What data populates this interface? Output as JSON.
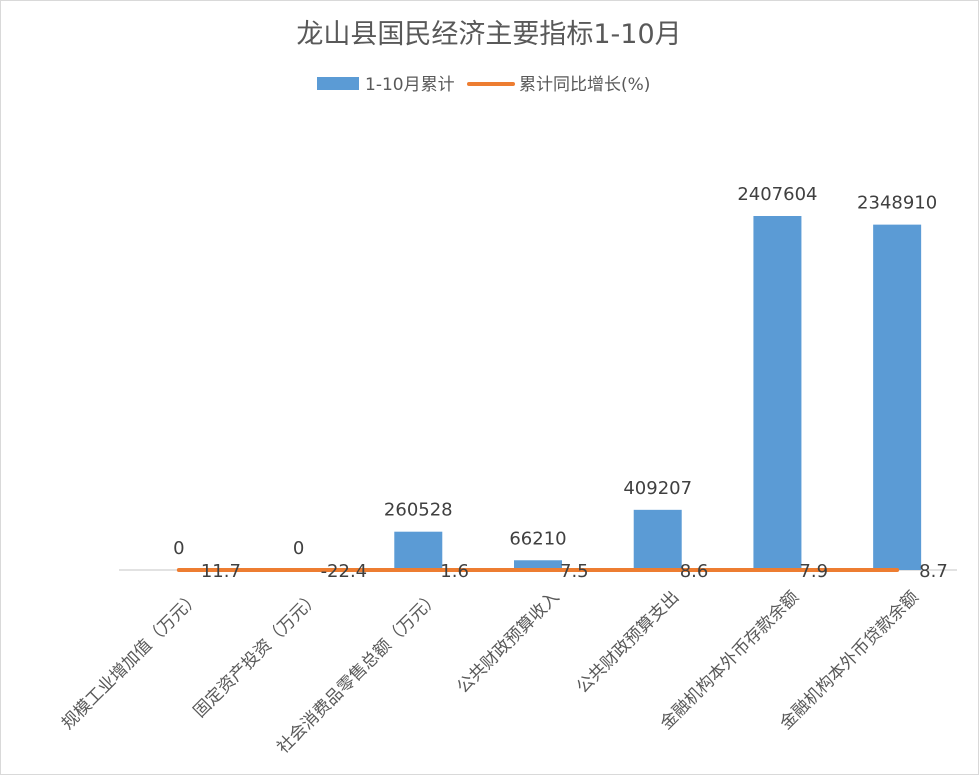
{
  "chart_data": {
    "type": "bar",
    "title": "龙山县国民经济主要指标1-10月",
    "categories": [
      "规模工业增加值（万元）",
      "固定资产投资（万元）",
      "社会消费品零售总额（万元）",
      "公共财政预算收入",
      "公共财政预算支出",
      "金融机构本外币存款余额",
      "金融机构本外币贷款余额"
    ],
    "series": [
      {
        "name": "1-10月累计",
        "type": "bar",
        "color": "#5b9bd5",
        "values": [
          0,
          0,
          260528,
          66210,
          409207,
          2407604,
          2348910
        ]
      },
      {
        "name": "累计同比增长(%)",
        "type": "line",
        "color": "#ed7d31",
        "values": [
          11.7,
          -22.4,
          1.6,
          7.5,
          8.6,
          7.9,
          8.7
        ]
      }
    ],
    "ylim": [
      0,
      2800000
    ],
    "grid": false,
    "legend_position": "top"
  }
}
